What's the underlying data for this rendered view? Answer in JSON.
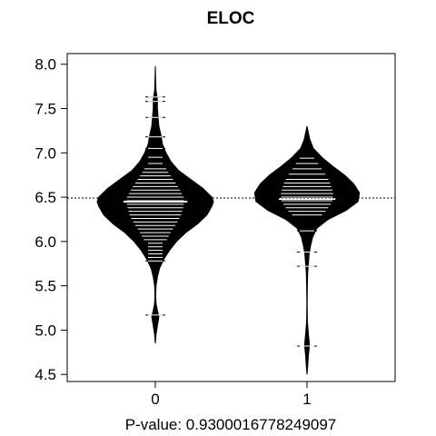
{
  "chart_data": {
    "type": "beanplot",
    "title": "ELOC",
    "xlabel": "P-value: 0.9300016778249097",
    "ylabel": "",
    "categories": [
      "0",
      "1"
    ],
    "ylim": [
      4.42,
      8.12
    ],
    "yticks": [
      4.5,
      5.0,
      5.5,
      6.0,
      6.5,
      7.0,
      7.5,
      8.0
    ],
    "ytick_labels": [
      "4.5",
      "5.0",
      "5.5",
      "6.0",
      "6.5",
      "7.0",
      "7.5",
      "8.0"
    ],
    "overall_mean": 6.49,
    "colors": {
      "bean": "#000000",
      "lines": "#ffffff",
      "axis": "#000000"
    },
    "series": [
      {
        "group": "0",
        "mean": 6.45,
        "density": [
          [
            4.85,
            0
          ],
          [
            4.95,
            0.01
          ],
          [
            5.05,
            0.03
          ],
          [
            5.15,
            0.05
          ],
          [
            5.22,
            0.03
          ],
          [
            5.3,
            0.01
          ],
          [
            5.4,
            0.005
          ],
          [
            5.5,
            0.01
          ],
          [
            5.6,
            0.03
          ],
          [
            5.7,
            0.06
          ],
          [
            5.8,
            0.12
          ],
          [
            5.9,
            0.2
          ],
          [
            6.0,
            0.3
          ],
          [
            6.1,
            0.43
          ],
          [
            6.2,
            0.6
          ],
          [
            6.3,
            0.73
          ],
          [
            6.4,
            0.8
          ],
          [
            6.45,
            0.82
          ],
          [
            6.5,
            0.8
          ],
          [
            6.6,
            0.67
          ],
          [
            6.7,
            0.5
          ],
          [
            6.8,
            0.33
          ],
          [
            6.9,
            0.22
          ],
          [
            7.0,
            0.15
          ],
          [
            7.1,
            0.1
          ],
          [
            7.2,
            0.08
          ],
          [
            7.3,
            0.05
          ],
          [
            7.4,
            0.04
          ],
          [
            7.5,
            0.03
          ],
          [
            7.6,
            0.03
          ],
          [
            7.7,
            0.01
          ],
          [
            7.8,
            0.005
          ],
          [
            7.98,
            0
          ]
        ],
        "observations": [
          5.17,
          5.78,
          5.82,
          5.86,
          5.9,
          5.94,
          5.98,
          6.02,
          6.06,
          6.1,
          6.14,
          6.18,
          6.22,
          6.26,
          6.3,
          6.34,
          6.38,
          6.42,
          6.46,
          6.5,
          6.54,
          6.58,
          6.62,
          6.66,
          6.7,
          6.74,
          6.78,
          6.82,
          6.88,
          6.95,
          7.05,
          7.18,
          7.4,
          7.58,
          7.63
        ]
      },
      {
        "group": "1",
        "mean": 6.48,
        "density": [
          [
            4.5,
            0
          ],
          [
            4.6,
            0.01
          ],
          [
            4.72,
            0.02
          ],
          [
            4.83,
            0.035
          ],
          [
            4.95,
            0.02
          ],
          [
            5.1,
            0.005
          ],
          [
            5.3,
            0.003
          ],
          [
            5.5,
            0.005
          ],
          [
            5.65,
            0.01
          ],
          [
            5.75,
            0.02
          ],
          [
            5.85,
            0.03
          ],
          [
            5.95,
            0.05
          ],
          [
            6.05,
            0.08
          ],
          [
            6.15,
            0.14
          ],
          [
            6.25,
            0.3
          ],
          [
            6.35,
            0.55
          ],
          [
            6.45,
            0.72
          ],
          [
            6.55,
            0.74
          ],
          [
            6.65,
            0.66
          ],
          [
            6.75,
            0.53
          ],
          [
            6.85,
            0.36
          ],
          [
            6.95,
            0.21
          ],
          [
            7.05,
            0.09
          ],
          [
            7.15,
            0.04
          ],
          [
            7.3,
            0
          ]
        ],
        "observations": [
          4.82,
          5.72,
          5.88,
          6.12,
          6.3,
          6.34,
          6.38,
          6.42,
          6.46,
          6.5,
          6.54,
          6.58,
          6.62,
          6.66,
          6.7,
          6.76,
          6.82,
          6.88,
          6.94
        ]
      }
    ]
  }
}
